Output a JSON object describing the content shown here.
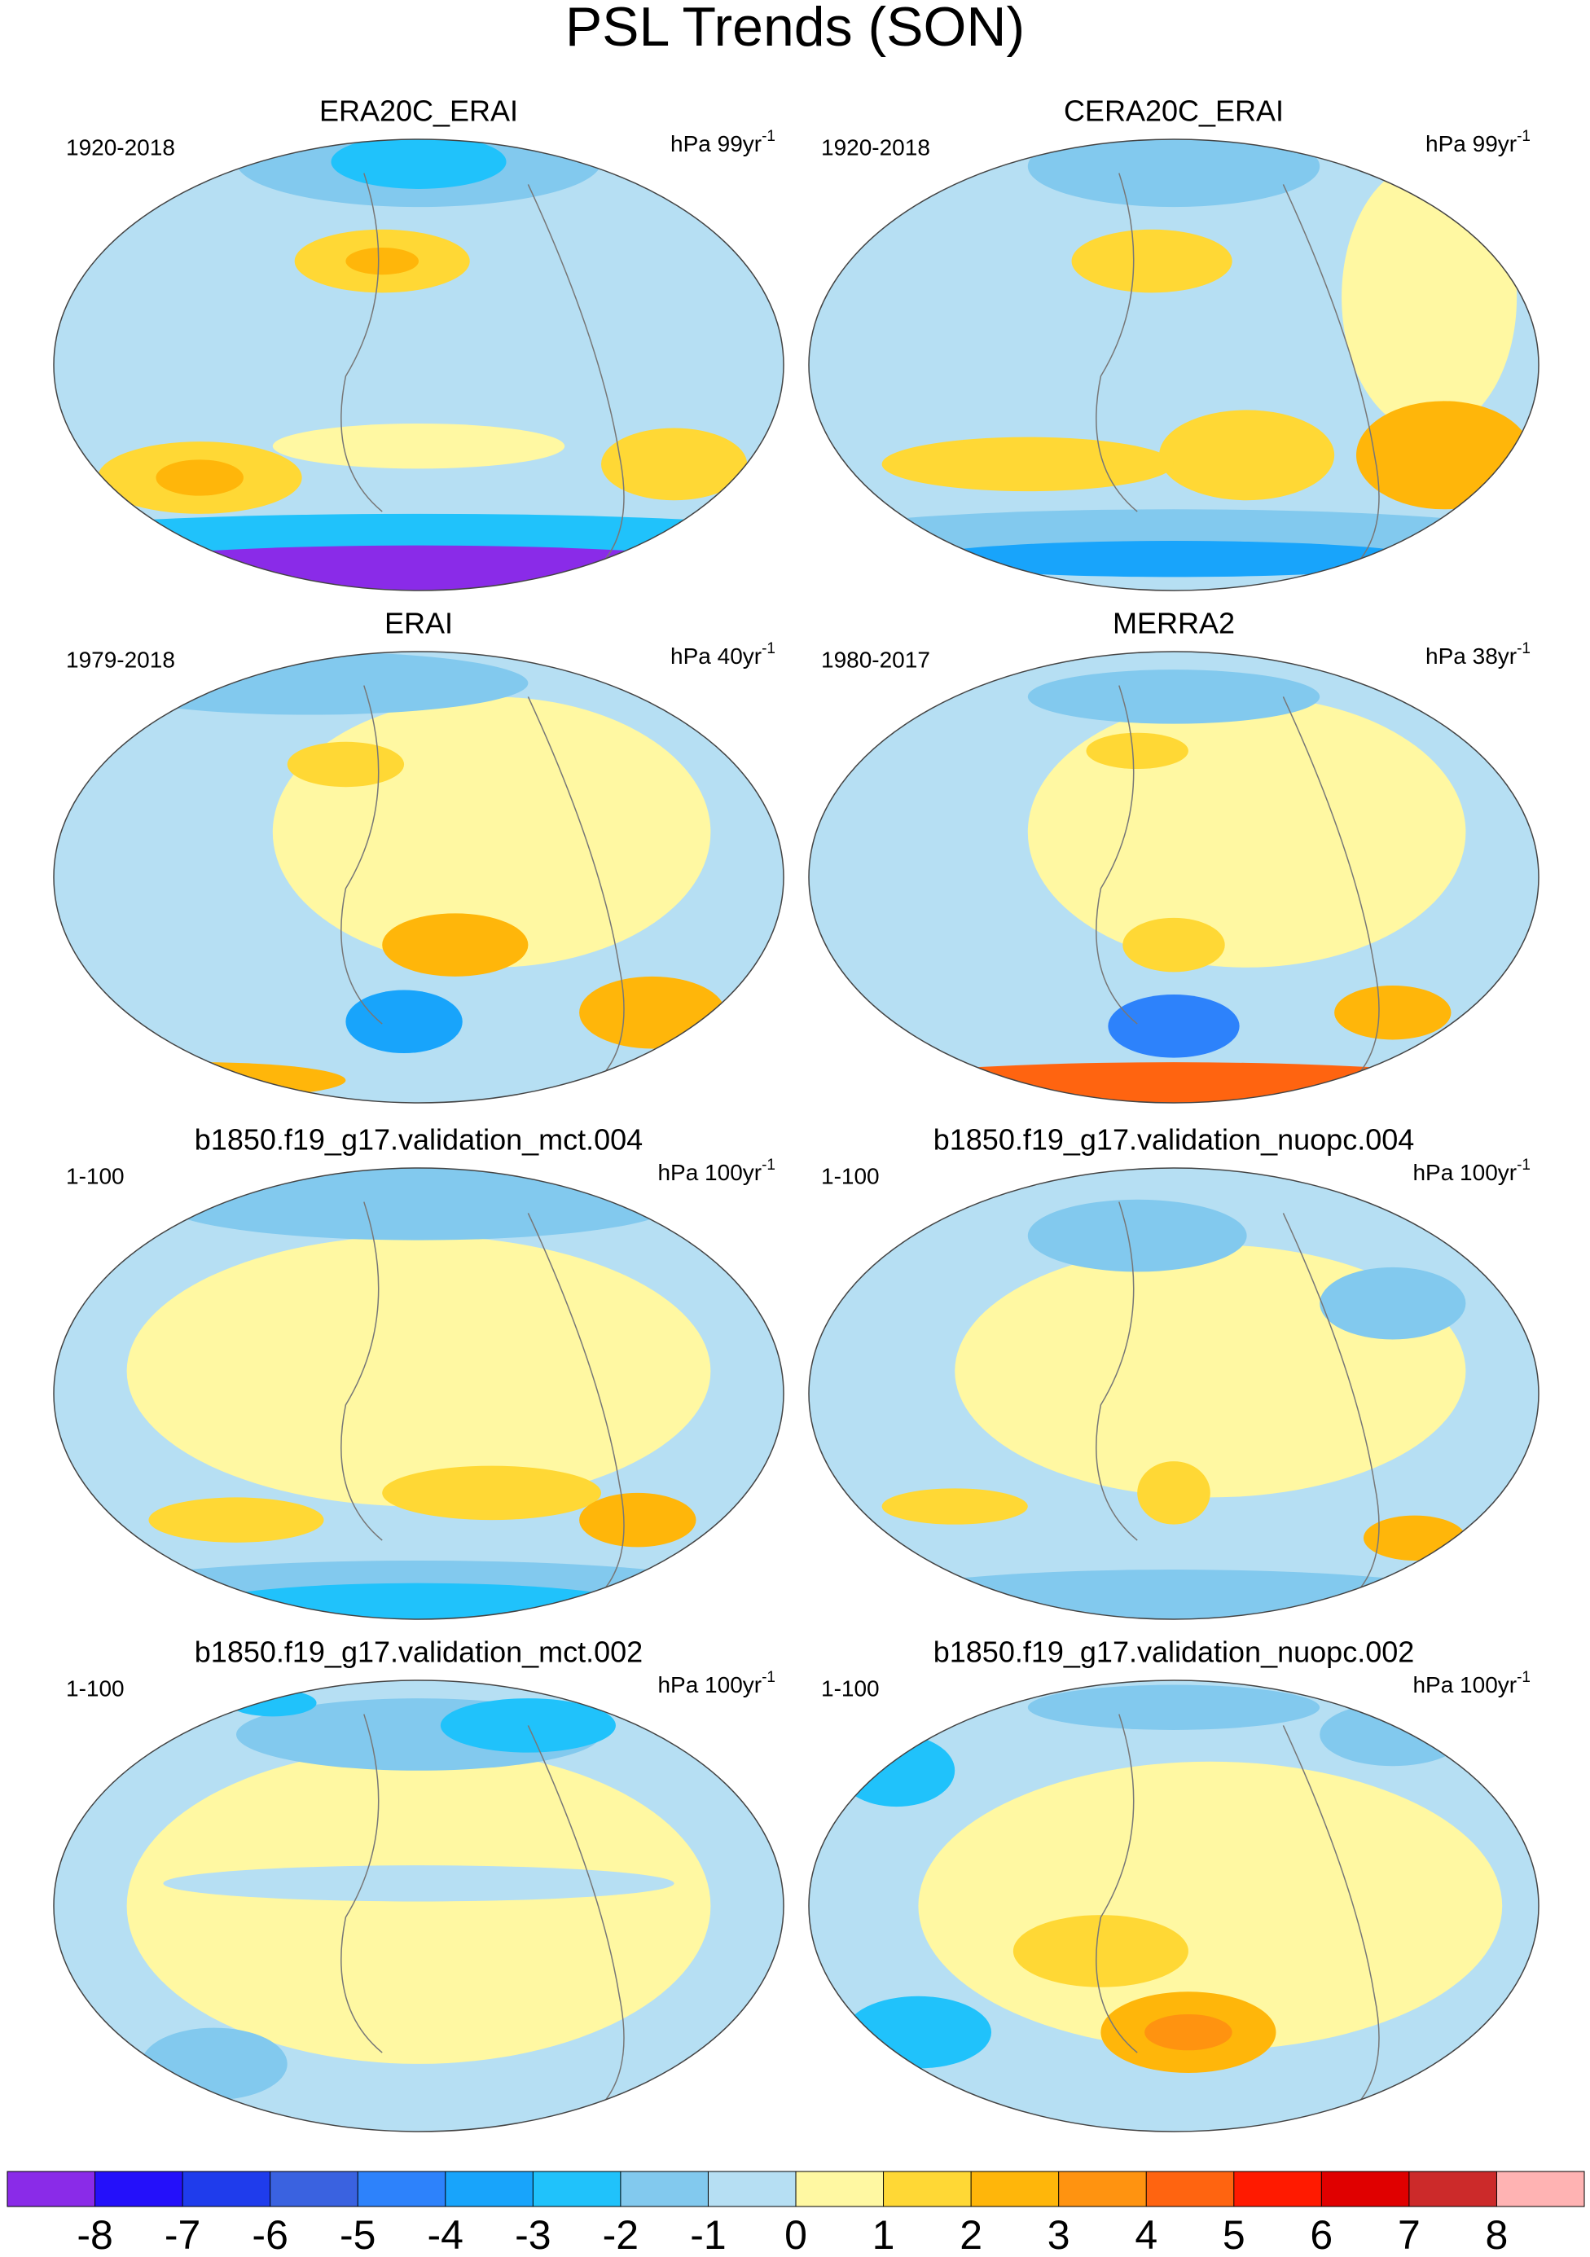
{
  "figure": {
    "title": "PSL Trends (SON)",
    "panels": [
      {
        "title": "ERA20C_ERAI",
        "period": "1920-2018",
        "units": "hPa 99yr",
        "units_exponent": "-1"
      },
      {
        "title": "CERA20C_ERAI",
        "period": "1920-2018",
        "units": "hPa 99yr",
        "units_exponent": "-1"
      },
      {
        "title": "ERAI",
        "period": "1979-2018",
        "units": "hPa 40yr",
        "units_exponent": "-1"
      },
      {
        "title": "MERRA2",
        "period": "1980-2017",
        "units": "hPa 38yr",
        "units_exponent": "-1"
      },
      {
        "title": "b1850.f19_g17.validation_mct.004",
        "period": "1-100",
        "units": "hPa 100yr",
        "units_exponent": "-1"
      },
      {
        "title": "b1850.f19_g17.validation_nuopc.004",
        "period": "1-100",
        "units": "hPa 100yr",
        "units_exponent": "-1"
      },
      {
        "title": "b1850.f19_g17.validation_mct.002",
        "period": "1-100",
        "units": "hPa 100yr",
        "units_exponent": "-1"
      },
      {
        "title": "b1850.f19_g17.validation_nuopc.002",
        "period": "1-100",
        "units": "hPa 100yr",
        "units_exponent": "-1"
      }
    ],
    "colorbar": {
      "levels": [
        -8,
        -7,
        -6,
        -5,
        -4,
        -3,
        -2,
        -1,
        0,
        1,
        2,
        3,
        4,
        5,
        6,
        7,
        8
      ],
      "colors": [
        "#8a2be8",
        "#2410fa",
        "#1f3cec",
        "#3a62e0",
        "#2d82fb",
        "#18a4fb",
        "#20c2fb",
        "#82c9ee",
        "#b6dff3",
        "#fff8a2",
        "#ffd835",
        "#ffb60a",
        "#ff9310",
        "#ff6410",
        "#ff1a00",
        "#e00000",
        "#cc2a2a",
        "#ffb3b3"
      ]
    }
  }
}
